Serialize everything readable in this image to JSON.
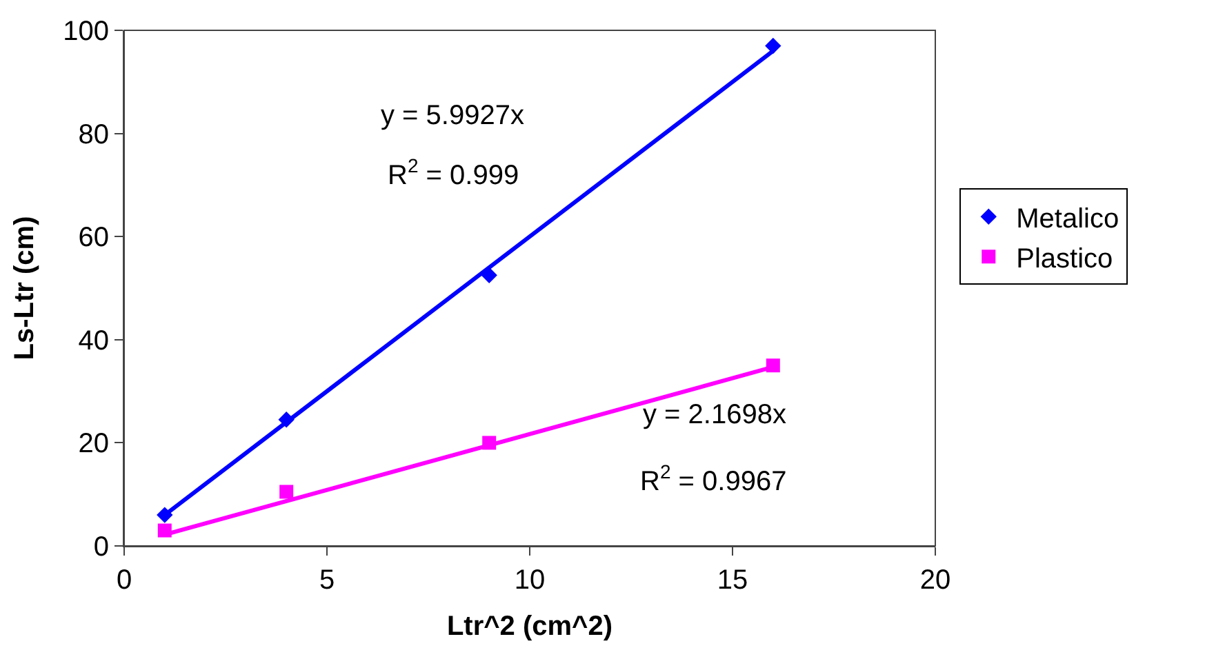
{
  "chart_data": {
    "type": "scatter",
    "xlabel": "Ltr^2 (cm^2)",
    "ylabel": "Ls-Ltr (cm)",
    "xlim": [
      0,
      20
    ],
    "xticks": [
      0,
      5,
      10,
      15,
      20
    ],
    "ylim": [
      0,
      100
    ],
    "yticks": [
      0,
      20,
      40,
      60,
      80,
      100
    ],
    "legend": "right",
    "series": [
      {
        "name": "Metalico",
        "color": "#0000ff",
        "marker": "diamond",
        "x": [
          1,
          4,
          9,
          16
        ],
        "values": [
          6,
          24.5,
          52.5,
          97
        ]
      },
      {
        "name": "Plastico",
        "color": "#ff00ff",
        "marker": "square",
        "x": [
          1,
          4,
          9,
          16
        ],
        "values": [
          3,
          10.5,
          20,
          35
        ]
      },
      {
        "type": "line",
        "color": "#0000ff",
        "marker": "none",
        "x": [
          1,
          16
        ],
        "values": [
          6,
          96
        ]
      },
      {
        "type": "line",
        "color": "#ff00ff",
        "marker": "none",
        "x": [
          1,
          16
        ],
        "values": [
          2.2,
          34.7
        ]
      }
    ],
    "annotations": [
      "y = 5.9927x",
      "R$^{2}$ = 0.999",
      "y = 2.1698x",
      "R$^{2}$ = 0.9967"
    ]
  }
}
